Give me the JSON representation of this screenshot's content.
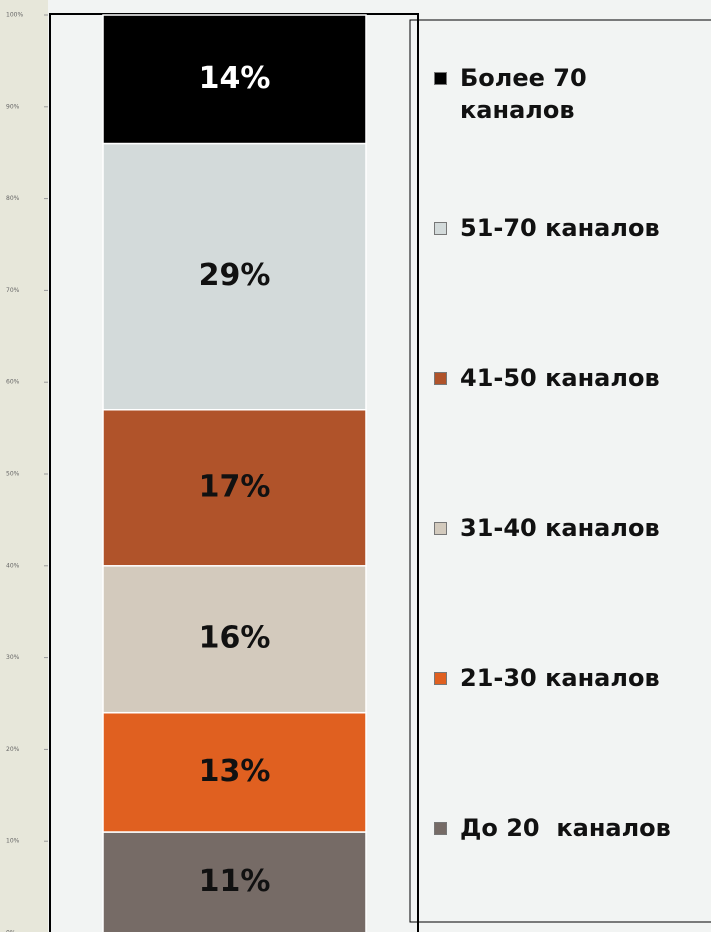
{
  "chart_data": {
    "type": "stacked_bar",
    "series": [
      {
        "name": "До 20  каналов",
        "color": "#766b66",
        "values": [
          11
        ],
        "value_labels": [
          "11%"
        ]
      },
      {
        "name": "21-30 каналов",
        "color": "#e06020",
        "values": [
          13
        ],
        "value_labels": [
          "13%"
        ]
      },
      {
        "name": "31-40 каналов",
        "color": "#d3cabd",
        "values": [
          16
        ],
        "value_labels": [
          "16%"
        ]
      },
      {
        "name": "41-50 каналов",
        "color": "#b0532a",
        "values": [
          17
        ],
        "value_labels": [
          "17%"
        ]
      },
      {
        "name": "51-70 каналов",
        "color": "#d3dada",
        "values": [
          29
        ],
        "value_labels": [
          "29%"
        ]
      },
      {
        "name": "Более 70 каналов",
        "color": "#000000",
        "values": [
          14
        ],
        "value_labels": [
          "14%"
        ]
      }
    ],
    "ylim": [
      0,
      100
    ],
    "yticks": [
      {
        "value": 0,
        "label": "0%"
      },
      {
        "value": 10,
        "label": "10%"
      },
      {
        "value": 20,
        "label": "20%"
      },
      {
        "value": 30,
        "label": "30%"
      },
      {
        "value": 40,
        "label": "40%"
      },
      {
        "value": 50,
        "label": "50%"
      },
      {
        "value": 60,
        "label": "60%"
      },
      {
        "value": 70,
        "label": "70%"
      },
      {
        "value": 80,
        "label": "80%"
      },
      {
        "value": 90,
        "label": "90%"
      },
      {
        "value": 100,
        "label": "100%"
      }
    ]
  }
}
